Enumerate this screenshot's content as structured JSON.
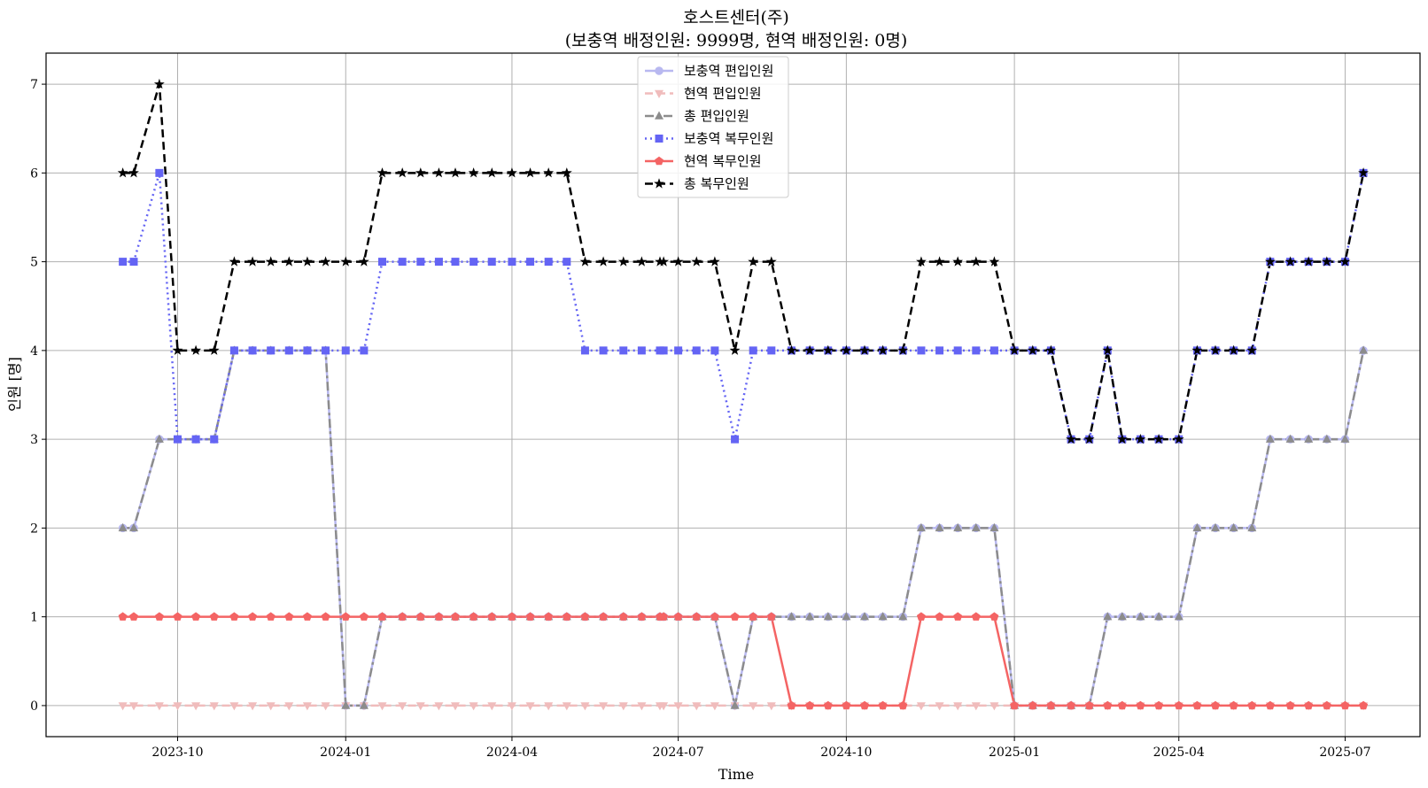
{
  "chart_data": {
    "type": "line",
    "title": "호스트센터(주)",
    "subtitle": "(보충역 배정인원: 9999명, 현역 배정인원: 0명)",
    "xlabel": "Time",
    "ylabel": "인원 [명]",
    "ylim": [
      -0.35,
      7.35
    ],
    "xlim": [
      "2023-07-21",
      "2025-08-11"
    ],
    "grid": true,
    "legend_position": "top-center",
    "y_ticks": [
      "0",
      "1",
      "2",
      "3",
      "4",
      "5",
      "6",
      "7"
    ],
    "x_ticks": [
      {
        "date": "2023-10-01",
        "label": "2023-10"
      },
      {
        "date": "2024-01-01",
        "label": "2024-01"
      },
      {
        "date": "2024-04-01",
        "label": "2024-04"
      },
      {
        "date": "2024-07-01",
        "label": "2024-07"
      },
      {
        "date": "2024-10-01",
        "label": "2024-10"
      },
      {
        "date": "2025-01-01",
        "label": "2025-01"
      },
      {
        "date": "2025-04-01",
        "label": "2025-04"
      },
      {
        "date": "2025-07-01",
        "label": "2025-07"
      }
    ],
    "x": [
      "2023-09-01",
      "2023-09-07",
      "2023-09-21",
      "2023-10-01",
      "2023-10-11",
      "2023-10-21",
      "2023-11-01",
      "2023-11-11",
      "2023-11-21",
      "2023-12-01",
      "2023-12-11",
      "2023-12-21",
      "2024-01-01",
      "2024-01-11",
      "2024-01-21",
      "2024-02-01",
      "2024-02-11",
      "2024-02-21",
      "2024-03-01",
      "2024-03-11",
      "2024-03-21",
      "2024-04-01",
      "2024-04-11",
      "2024-04-21",
      "2024-05-01",
      "2024-05-11",
      "2024-05-21",
      "2024-06-01",
      "2024-06-11",
      "2024-06-21",
      "2024-06-23",
      "2024-07-01",
      "2024-07-11",
      "2024-07-21",
      "2024-08-01",
      "2024-08-11",
      "2024-08-21",
      "2024-09-01",
      "2024-09-11",
      "2024-09-21",
      "2024-10-01",
      "2024-10-11",
      "2024-10-21",
      "2024-11-01",
      "2024-11-11",
      "2024-11-21",
      "2024-12-01",
      "2024-12-11",
      "2024-12-21",
      "2025-01-01",
      "2025-01-11",
      "2025-01-21",
      "2025-02-01",
      "2025-02-11",
      "2025-02-21",
      "2025-03-01",
      "2025-03-11",
      "2025-03-21",
      "2025-04-01",
      "2025-04-11",
      "2025-04-21",
      "2025-05-01",
      "2025-05-11",
      "2025-05-21",
      "2025-06-01",
      "2025-06-11",
      "2025-06-21",
      "2025-07-01",
      "2025-07-11"
    ],
    "series": [
      {
        "name": "보충역 편입인원",
        "color": "#b8b8f0",
        "dash": "",
        "marker": "circle",
        "width": 2.5,
        "values": [
          2,
          2,
          3,
          3,
          3,
          3,
          4,
          4,
          4,
          4,
          4,
          4,
          0,
          0,
          1,
          1,
          1,
          1,
          1,
          1,
          1,
          1,
          1,
          1,
          1,
          1,
          1,
          1,
          1,
          1,
          1,
          1,
          1,
          1,
          0,
          1,
          1,
          1,
          1,
          1,
          1,
          1,
          1,
          1,
          2,
          2,
          2,
          2,
          2,
          0,
          0,
          0,
          0,
          0,
          1,
          1,
          1,
          1,
          1,
          2,
          2,
          2,
          2,
          3,
          3,
          3,
          3,
          3,
          4
        ]
      },
      {
        "name": "현역 편입인원",
        "color": "#f0bcbc",
        "dash": "9,5",
        "marker": "triangle-down",
        "width": 2.5,
        "values": [
          0,
          0,
          0,
          0,
          0,
          0,
          0,
          0,
          0,
          0,
          0,
          0,
          0,
          0,
          0,
          0,
          0,
          0,
          0,
          0,
          0,
          0,
          0,
          0,
          0,
          0,
          0,
          0,
          0,
          0,
          0,
          0,
          0,
          0,
          0,
          0,
          0,
          0,
          0,
          0,
          0,
          0,
          0,
          0,
          0,
          0,
          0,
          0,
          0,
          0,
          0,
          0,
          0,
          0,
          0,
          0,
          0,
          0,
          0,
          0,
          0,
          0,
          0,
          0,
          0,
          0,
          0,
          0,
          0
        ]
      },
      {
        "name": "총 편입인원",
        "color": "#8c8c8c",
        "dash": "10,4,3,4",
        "marker": "triangle-up",
        "width": 2.5,
        "values": [
          2,
          2,
          3,
          3,
          3,
          3,
          4,
          4,
          4,
          4,
          4,
          4,
          0,
          0,
          1,
          1,
          1,
          1,
          1,
          1,
          1,
          1,
          1,
          1,
          1,
          1,
          1,
          1,
          1,
          1,
          1,
          1,
          1,
          1,
          0,
          1,
          1,
          1,
          1,
          1,
          1,
          1,
          1,
          1,
          2,
          2,
          2,
          2,
          2,
          0,
          0,
          0,
          0,
          0,
          1,
          1,
          1,
          1,
          1,
          2,
          2,
          2,
          2,
          3,
          3,
          3,
          3,
          3,
          4
        ]
      },
      {
        "name": "보충역 복무인원",
        "color": "#6464f4",
        "dash": "2,4",
        "marker": "square",
        "width": 2.5,
        "values": [
          5,
          5,
          6,
          3,
          3,
          3,
          4,
          4,
          4,
          4,
          4,
          4,
          4,
          4,
          5,
          5,
          5,
          5,
          5,
          5,
          5,
          5,
          5,
          5,
          5,
          4,
          4,
          4,
          4,
          4,
          4,
          4,
          4,
          4,
          3,
          4,
          4,
          4,
          4,
          4,
          4,
          4,
          4,
          4,
          4,
          4,
          4,
          4,
          4,
          4,
          4,
          4,
          3,
          3,
          4,
          3,
          3,
          3,
          3,
          4,
          4,
          4,
          4,
          5,
          5,
          5,
          5,
          5,
          6
        ]
      },
      {
        "name": "현역 복무인원",
        "color": "#f46464",
        "dash": "",
        "marker": "pentagon",
        "width": 2.5,
        "values": [
          1,
          1,
          1,
          1,
          1,
          1,
          1,
          1,
          1,
          1,
          1,
          1,
          1,
          1,
          1,
          1,
          1,
          1,
          1,
          1,
          1,
          1,
          1,
          1,
          1,
          1,
          1,
          1,
          1,
          1,
          1,
          1,
          1,
          1,
          1,
          1,
          1,
          0,
          0,
          0,
          0,
          0,
          0,
          0,
          1,
          1,
          1,
          1,
          1,
          0,
          0,
          0,
          0,
          0,
          0,
          0,
          0,
          0,
          0,
          0,
          0,
          0,
          0,
          0,
          0,
          0,
          0,
          0,
          0
        ]
      },
      {
        "name": "총 복무인원",
        "color": "#000000",
        "dash": "9,5",
        "marker": "star",
        "width": 2.5,
        "values": [
          6,
          6,
          7,
          4,
          4,
          4,
          5,
          5,
          5,
          5,
          5,
          5,
          5,
          5,
          6,
          6,
          6,
          6,
          6,
          6,
          6,
          6,
          6,
          6,
          6,
          5,
          5,
          5,
          5,
          5,
          5,
          5,
          5,
          5,
          4,
          5,
          5,
          4,
          4,
          4,
          4,
          4,
          4,
          4,
          5,
          5,
          5,
          5,
          5,
          4,
          4,
          4,
          3,
          3,
          4,
          3,
          3,
          3,
          3,
          4,
          4,
          4,
          4,
          5,
          5,
          5,
          5,
          5,
          6
        ]
      }
    ]
  }
}
